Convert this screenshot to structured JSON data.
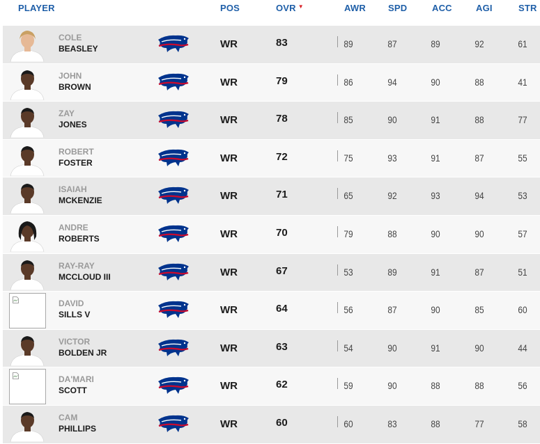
{
  "header": {
    "player": "PLAYER",
    "pos": "POS",
    "ovr": "OVR",
    "sort_indicator": "▼",
    "awr": "AWR",
    "spd": "SPD",
    "acc": "ACC",
    "agi": "AGI",
    "str": "STR"
  },
  "team_logo_icon": "buffalo-bills-logo-icon",
  "colors": {
    "header_text": "#1f5fa8",
    "sort_caret": "#d8232a",
    "logo_blue": "#00338d",
    "logo_red": "#c60c30"
  },
  "players": [
    {
      "first": "COLE",
      "last": "BEASLEY",
      "pos": "WR",
      "ovr": "83",
      "awr": "89",
      "spd": "87",
      "acc": "89",
      "agi": "92",
      "str": "61",
      "photo": "headshot-blonde"
    },
    {
      "first": "JOHN",
      "last": "BROWN",
      "pos": "WR",
      "ovr": "79",
      "awr": "86",
      "spd": "94",
      "acc": "90",
      "agi": "88",
      "str": "41",
      "photo": "headshot"
    },
    {
      "first": "ZAY",
      "last": "JONES",
      "pos": "WR",
      "ovr": "78",
      "awr": "85",
      "spd": "90",
      "acc": "91",
      "agi": "88",
      "str": "77",
      "photo": "headshot"
    },
    {
      "first": "ROBERT",
      "last": "FOSTER",
      "pos": "WR",
      "ovr": "72",
      "awr": "75",
      "spd": "93",
      "acc": "91",
      "agi": "87",
      "str": "55",
      "photo": "headshot"
    },
    {
      "first": "ISAIAH",
      "last": "MCKENZIE",
      "pos": "WR",
      "ovr": "71",
      "awr": "65",
      "spd": "92",
      "acc": "93",
      "agi": "94",
      "str": "53",
      "photo": "headshot"
    },
    {
      "first": "ANDRE",
      "last": "ROBERTS",
      "pos": "WR",
      "ovr": "70",
      "awr": "79",
      "spd": "88",
      "acc": "90",
      "agi": "90",
      "str": "57",
      "photo": "headshot-locks"
    },
    {
      "first": "RAY-RAY",
      "last": "MCCLOUD III",
      "pos": "WR",
      "ovr": "67",
      "awr": "53",
      "spd": "89",
      "acc": "91",
      "agi": "87",
      "str": "51",
      "photo": "headshot"
    },
    {
      "first": "DAVID",
      "last": "SILLS V",
      "pos": "WR",
      "ovr": "64",
      "awr": "56",
      "spd": "87",
      "acc": "90",
      "agi": "85",
      "str": "60",
      "photo": "broken-image"
    },
    {
      "first": "VICTOR",
      "last": "BOLDEN JR",
      "pos": "WR",
      "ovr": "63",
      "awr": "54",
      "spd": "90",
      "acc": "91",
      "agi": "90",
      "str": "44",
      "photo": "headshot"
    },
    {
      "first": "DA'MARI",
      "last": "SCOTT",
      "pos": "WR",
      "ovr": "62",
      "awr": "59",
      "spd": "90",
      "acc": "88",
      "agi": "88",
      "str": "56",
      "photo": "broken-image"
    },
    {
      "first": "CAM",
      "last": "PHILLIPS",
      "pos": "WR",
      "ovr": "60",
      "awr": "60",
      "spd": "83",
      "acc": "88",
      "agi": "77",
      "str": "58",
      "photo": "headshot"
    }
  ]
}
